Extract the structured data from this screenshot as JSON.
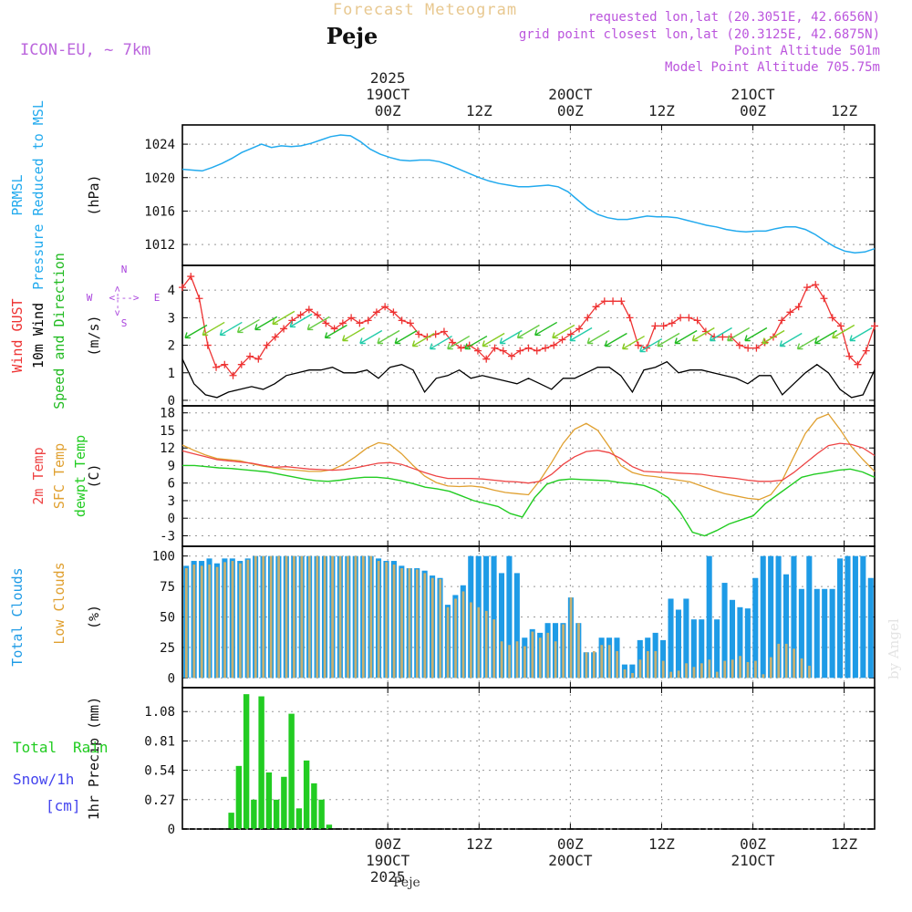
{
  "header": {
    "title": "Forecast Meteogram",
    "location": "Peje",
    "model": "ICON-EU, ~ 7km",
    "requested": "requested lon,lat (20.3051E, 42.6656N)",
    "gridpoint": "grid point closest lon,lat (20.3125E, 42.6875N)",
    "point_alt": "Point Altitude 501m",
    "model_alt": "Model Point Altitude 705.75m"
  },
  "footer": {
    "location": "Peje",
    "credit": "by Angel"
  },
  "colors": {
    "pressure": "#22aaee",
    "gust": "#ee3333",
    "wind": "#000000",
    "dir": "#22bb22",
    "temp2m": "#ee4444",
    "sfc": "#e0a030",
    "dewpt": "#22cc22",
    "total_clouds": "#1e9be6",
    "low_clouds": "#c8b070",
    "rain": "#22cc22",
    "snow": "#4444ee",
    "purple": "#aa44dd"
  },
  "chart_data": [
    {
      "type": "line",
      "id": "pressure",
      "title": "PRMSL Pressure Reduced to MSL",
      "ylabel": "(hPa)",
      "legend": [
        "PRMSL",
        "Pressure Reduced to MSL"
      ],
      "x_hours_start": -27,
      "x_hours_end": 64,
      "ylim": [
        1009.5,
        1026.3
      ],
      "yticks": [
        1012,
        1016,
        1020,
        1024
      ],
      "x_top_labels": [
        {
          "h": 0,
          "lines": [
            "2025",
            "19OCT",
            "00Z"
          ]
        },
        {
          "h": 12,
          "lines": [
            "12Z"
          ]
        },
        {
          "h": 24,
          "lines": [
            "20OCT",
            "00Z"
          ]
        },
        {
          "h": 36,
          "lines": [
            "12Z"
          ]
        },
        {
          "h": 48,
          "lines": [
            "21OCT",
            "00Z"
          ]
        },
        {
          "h": 60,
          "lines": [
            "12Z"
          ]
        }
      ],
      "values": [
        1021.0,
        1020.9,
        1020.8,
        1021.2,
        1021.7,
        1022.3,
        1023.0,
        1023.5,
        1024.0,
        1023.6,
        1023.8,
        1023.7,
        1023.8,
        1024.1,
        1024.5,
        1024.9,
        1025.1,
        1025.0,
        1024.3,
        1023.4,
        1022.8,
        1022.4,
        1022.1,
        1022.0,
        1022.1,
        1022.1,
        1021.9,
        1021.5,
        1021.0,
        1020.5,
        1020.0,
        1019.6,
        1019.3,
        1019.1,
        1018.9,
        1018.9,
        1019.0,
        1019.1,
        1018.9,
        1018.3,
        1017.3,
        1016.3,
        1015.6,
        1015.2,
        1015.0,
        1015.0,
        1015.2,
        1015.4,
        1015.3,
        1015.3,
        1015.2,
        1014.9,
        1014.6,
        1014.3,
        1014.1,
        1013.8,
        1013.6,
        1013.5,
        1013.6,
        1013.6,
        1013.9,
        1014.1,
        1014.1,
        1013.8,
        1013.2,
        1012.4,
        1011.7,
        1011.2,
        1011.0,
        1011.1,
        1011.5
      ]
    },
    {
      "type": "line",
      "id": "wind",
      "title": "Wind GUST / 10m Wind / Speed and Direction",
      "ylabel": "(m/s)",
      "legend": [
        "Wind GUST",
        "10m Wind",
        "Speed and Direction"
      ],
      "compass": {
        "n": "N",
        "s": "S",
        "w": "W",
        "e": "E",
        "arrow": "<--->"
      },
      "x_hours_start": -27,
      "x_hours_end": 64,
      "ylim": [
        -0.2,
        4.9
      ],
      "yticks": [
        0,
        1,
        2,
        3,
        4
      ],
      "series": [
        {
          "name": "Wind GUST",
          "values": [
            4.1,
            4.5,
            3.7,
            2.0,
            1.2,
            1.3,
            0.9,
            1.3,
            1.6,
            1.5,
            2.0,
            2.3,
            2.6,
            2.9,
            3.1,
            3.3,
            3.1,
            2.8,
            2.6,
            2.8,
            3.0,
            2.8,
            2.9,
            3.2,
            3.4,
            3.2,
            2.9,
            2.8,
            2.4,
            2.3,
            2.4,
            2.5,
            2.1,
            1.9,
            2.0,
            1.8,
            1.5,
            1.9,
            1.8,
            1.6,
            1.8,
            1.9,
            1.8,
            1.9,
            2.0,
            2.2,
            2.4,
            2.6,
            3.0,
            3.4,
            3.6,
            3.6,
            3.6,
            3.0,
            2.0,
            1.9,
            2.7,
            2.7,
            2.8,
            3.0,
            3.0,
            2.9,
            2.5,
            2.3,
            2.3,
            2.3,
            2.0,
            1.9,
            1.9,
            2.1,
            2.3,
            2.9,
            3.2,
            3.4,
            4.1,
            4.2,
            3.7,
            3.0,
            2.7,
            1.6,
            1.3,
            1.8,
            2.7
          ]
        },
        {
          "name": "10m Wind",
          "values": [
            1.5,
            0.6,
            0.2,
            0.1,
            0.3,
            0.4,
            0.5,
            0.4,
            0.6,
            0.9,
            1.0,
            1.1,
            1.1,
            1.2,
            1.0,
            1.0,
            1.1,
            0.8,
            1.2,
            1.3,
            1.1,
            0.3,
            0.8,
            0.9,
            1.1,
            0.8,
            0.9,
            0.8,
            0.7,
            0.6,
            0.8,
            0.6,
            0.4,
            0.8,
            0.8,
            1.0,
            1.2,
            1.2,
            0.9,
            0.3,
            1.1,
            1.2,
            1.4,
            1.0,
            1.1,
            1.1,
            1.0,
            0.9,
            0.8,
            0.6,
            0.9,
            0.9,
            0.2,
            0.6,
            1.0,
            1.3,
            1.0,
            0.4,
            0.1,
            0.2,
            1.1
          ]
        },
        {
          "name": "Speed and Direction",
          "values": [
            2.5,
            2.6,
            2.6,
            2.7,
            2.8,
            3.0,
            2.9,
            2.8,
            2.5,
            2.4,
            2.3,
            2.3,
            2.3,
            2.2,
            2.1,
            2.1,
            2.1,
            2.2,
            2.3,
            2.5,
            2.6,
            2.5,
            2.4,
            2.3,
            2.2,
            2.1,
            2.0,
            2.2,
            2.3,
            2.4,
            2.4,
            2.4,
            2.4,
            2.3,
            2.2,
            2.1,
            2.3,
            2.5,
            2.4
          ]
        }
      ]
    },
    {
      "type": "line",
      "id": "temperature",
      "title": "2m Temp / SFC Temp / dewpt Temp",
      "ylabel": "(C)",
      "legend": [
        "2m Temp",
        "SFC Temp",
        "dewpt Temp"
      ],
      "x_hours_start": -27,
      "x_hours_end": 64,
      "ylim": [
        -4.8,
        19.2
      ],
      "yticks": [
        -3,
        0,
        3,
        6,
        9,
        12,
        15,
        18
      ],
      "series": [
        {
          "name": "2m Temp",
          "values": [
            11.5,
            11.0,
            10.5,
            10.0,
            9.8,
            9.6,
            9.4,
            9.0,
            8.7,
            8.8,
            8.6,
            8.4,
            8.3,
            8.2,
            8.3,
            8.6,
            9.0,
            9.4,
            9.5,
            9.2,
            8.5,
            7.8,
            7.2,
            6.8,
            6.8,
            6.8,
            6.7,
            6.5,
            6.3,
            6.2,
            6.0,
            6.3,
            7.5,
            9.2,
            10.5,
            11.4,
            11.6,
            11.2,
            10.2,
            8.8,
            8.0,
            7.9,
            7.8,
            7.7,
            7.6,
            7.5,
            7.2,
            7.0,
            6.8,
            6.5,
            6.3,
            6.3,
            6.5,
            7.8,
            9.4,
            11.0,
            12.4,
            12.8,
            12.6,
            12.0,
            10.7
          ]
        },
        {
          "name": "SFC Temp",
          "values": [
            12.5,
            11.6,
            10.8,
            10.2,
            10.0,
            9.8,
            9.3,
            8.9,
            8.6,
            8.3,
            8.2,
            8.0,
            8.0,
            8.3,
            9.2,
            10.5,
            12.0,
            12.9,
            12.6,
            11.0,
            9.0,
            7.2,
            6.1,
            5.5,
            5.4,
            5.5,
            5.3,
            4.8,
            4.4,
            4.2,
            4.0,
            6.5,
            9.5,
            12.8,
            15.2,
            16.2,
            15.0,
            12.2,
            9.0,
            7.8,
            7.3,
            7.1,
            6.8,
            6.5,
            6.2,
            5.5,
            4.8,
            4.2,
            3.8,
            3.4,
            3.2,
            4.0,
            6.5,
            10.5,
            14.5,
            17.0,
            17.8,
            15.2,
            12.2,
            10.0,
            8.0
          ]
        },
        {
          "name": "dewpt Temp",
          "values": [
            9.0,
            9.0,
            8.8,
            8.6,
            8.5,
            8.3,
            8.1,
            7.9,
            7.5,
            7.1,
            6.7,
            6.4,
            6.3,
            6.5,
            6.8,
            7.0,
            7.0,
            6.8,
            6.4,
            5.9,
            5.3,
            5.0,
            4.6,
            3.8,
            3.0,
            2.5,
            2.0,
            0.8,
            0.2,
            3.5,
            5.8,
            6.5,
            6.7,
            6.6,
            6.5,
            6.4,
            6.1,
            5.9,
            5.6,
            4.8,
            3.5,
            1.0,
            -2.4,
            -3.0,
            -2.1,
            -1.0,
            -0.3,
            0.4,
            2.5,
            4.0,
            5.5,
            7.0,
            7.5,
            7.8,
            8.2,
            8.4,
            7.9,
            7.0
          ]
        }
      ]
    },
    {
      "type": "bar",
      "id": "clouds",
      "title": "Total Clouds / Low Clouds",
      "ylabel": "(%)",
      "legend": [
        "Total Clouds",
        "Low Clouds"
      ],
      "x_hours_start": -27,
      "x_hours_end": 64,
      "ylim": [
        -8,
        108
      ],
      "yticks": [
        0,
        25,
        50,
        75,
        100
      ],
      "series": [
        {
          "name": "Total Clouds",
          "values": [
            92,
            96,
            96,
            98,
            94,
            98,
            98,
            96,
            98,
            100,
            100,
            100,
            100,
            100,
            100,
            100,
            100,
            100,
            100,
            100,
            100,
            100,
            100,
            100,
            100,
            98,
            96,
            96,
            92,
            90,
            90,
            88,
            84,
            82,
            60,
            68,
            76,
            100,
            100,
            100,
            100,
            86,
            100,
            86,
            33,
            40,
            37,
            45,
            45,
            45,
            66,
            45,
            21,
            21,
            33,
            33,
            33,
            11,
            11,
            31,
            33,
            37,
            31,
            65,
            56,
            65,
            48,
            48,
            100,
            48,
            78,
            64,
            58,
            57,
            82,
            100,
            100,
            100,
            85,
            100,
            73,
            100,
            73,
            73,
            73,
            98,
            100,
            100,
            100,
            82
          ]
        },
        {
          "name": "Low Clouds",
          "values": [
            90,
            93,
            92,
            93,
            91,
            95,
            96,
            94,
            97,
            100,
            100,
            100,
            100,
            100,
            100,
            100,
            100,
            100,
            100,
            100,
            100,
            100,
            100,
            100,
            100,
            96,
            95,
            93,
            90,
            90,
            89,
            86,
            82,
            81,
            58,
            65,
            71,
            62,
            58,
            55,
            48,
            30,
            27,
            30,
            26,
            38,
            33,
            37,
            30,
            44,
            66,
            45,
            21,
            22,
            27,
            27,
            22,
            7,
            4,
            15,
            22,
            22,
            14,
            5,
            6,
            12,
            9,
            12,
            15,
            5,
            14,
            15,
            18,
            13,
            14,
            3,
            17,
            28,
            28,
            24,
            16,
            10
          ]
        }
      ]
    },
    {
      "type": "bar",
      "id": "precip",
      "title": "Total Rain / Snow/1h [cm]",
      "ylabel": "1hr Precip (mm)",
      "legend": [
        "Total",
        "Rain",
        "Snow/1h",
        "[cm]"
      ],
      "x_hours_start": -27,
      "x_hours_end": 64,
      "ylim": [
        0,
        1.3
      ],
      "yticks": [
        0,
        0.27,
        0.54,
        0.81,
        1.08
      ],
      "series": [
        {
          "name": "Total Rain",
          "values": [
            0,
            0,
            0,
            0,
            0,
            0,
            0.15,
            0.58,
            1.24,
            0.27,
            1.22,
            0.52,
            0.27,
            0.48,
            1.06,
            0.19,
            0.63,
            0.42,
            0.27,
            0.04,
            0,
            0,
            0,
            0,
            0,
            0,
            0,
            0,
            0,
            0,
            0,
            0,
            0,
            0,
            0,
            0,
            0,
            0,
            0,
            0,
            0,
            0,
            0,
            0,
            0,
            0,
            0,
            0,
            0,
            0,
            0,
            0,
            0,
            0,
            0,
            0,
            0,
            0,
            0,
            0,
            0,
            0,
            0,
            0,
            0,
            0,
            0,
            0,
            0,
            0,
            0,
            0,
            0,
            0,
            0,
            0,
            0,
            0,
            0,
            0,
            0,
            0,
            0,
            0,
            0,
            0,
            0,
            0,
            0,
            0,
            0,
            0
          ]
        },
        {
          "name": "Snow/1h",
          "values": []
        }
      ],
      "x_bottom_labels": [
        {
          "h": 0,
          "lines": [
            "00Z",
            "19OCT",
            "2025"
          ]
        },
        {
          "h": 12,
          "lines": [
            "12Z"
          ]
        },
        {
          "h": 24,
          "lines": [
            "00Z",
            "20OCT"
          ]
        },
        {
          "h": 36,
          "lines": [
            "12Z"
          ]
        },
        {
          "h": 48,
          "lines": [
            "00Z",
            "21OCT"
          ]
        },
        {
          "h": 60,
          "lines": [
            "12Z"
          ]
        }
      ]
    }
  ]
}
